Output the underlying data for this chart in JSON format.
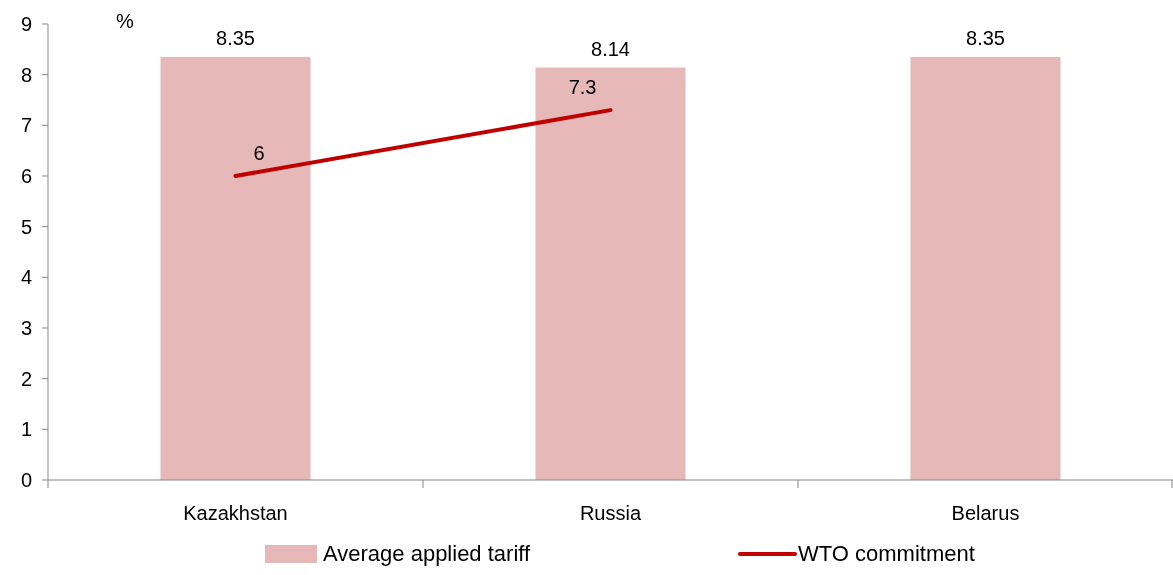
{
  "chart_data": {
    "type": "bar",
    "ylabel": "%",
    "categories": [
      "Kazakhstan",
      "Russia",
      "Belarus"
    ],
    "series": [
      {
        "name": "Average applied tariff",
        "color": "#e6b8b7",
        "values": [
          8.35,
          8.14,
          8.35
        ]
      },
      {
        "name": "WTO commitment",
        "type": "line",
        "color": "#c00000",
        "values": [
          6,
          7.3,
          null
        ]
      }
    ],
    "ylim": [
      0,
      9
    ],
    "yticks": [
      0,
      1,
      2,
      3,
      4,
      5,
      6,
      7,
      8,
      9
    ],
    "data_labels": true,
    "legend": "bottom",
    "grid": false,
    "marker": "none",
    "line_style": "solid"
  }
}
